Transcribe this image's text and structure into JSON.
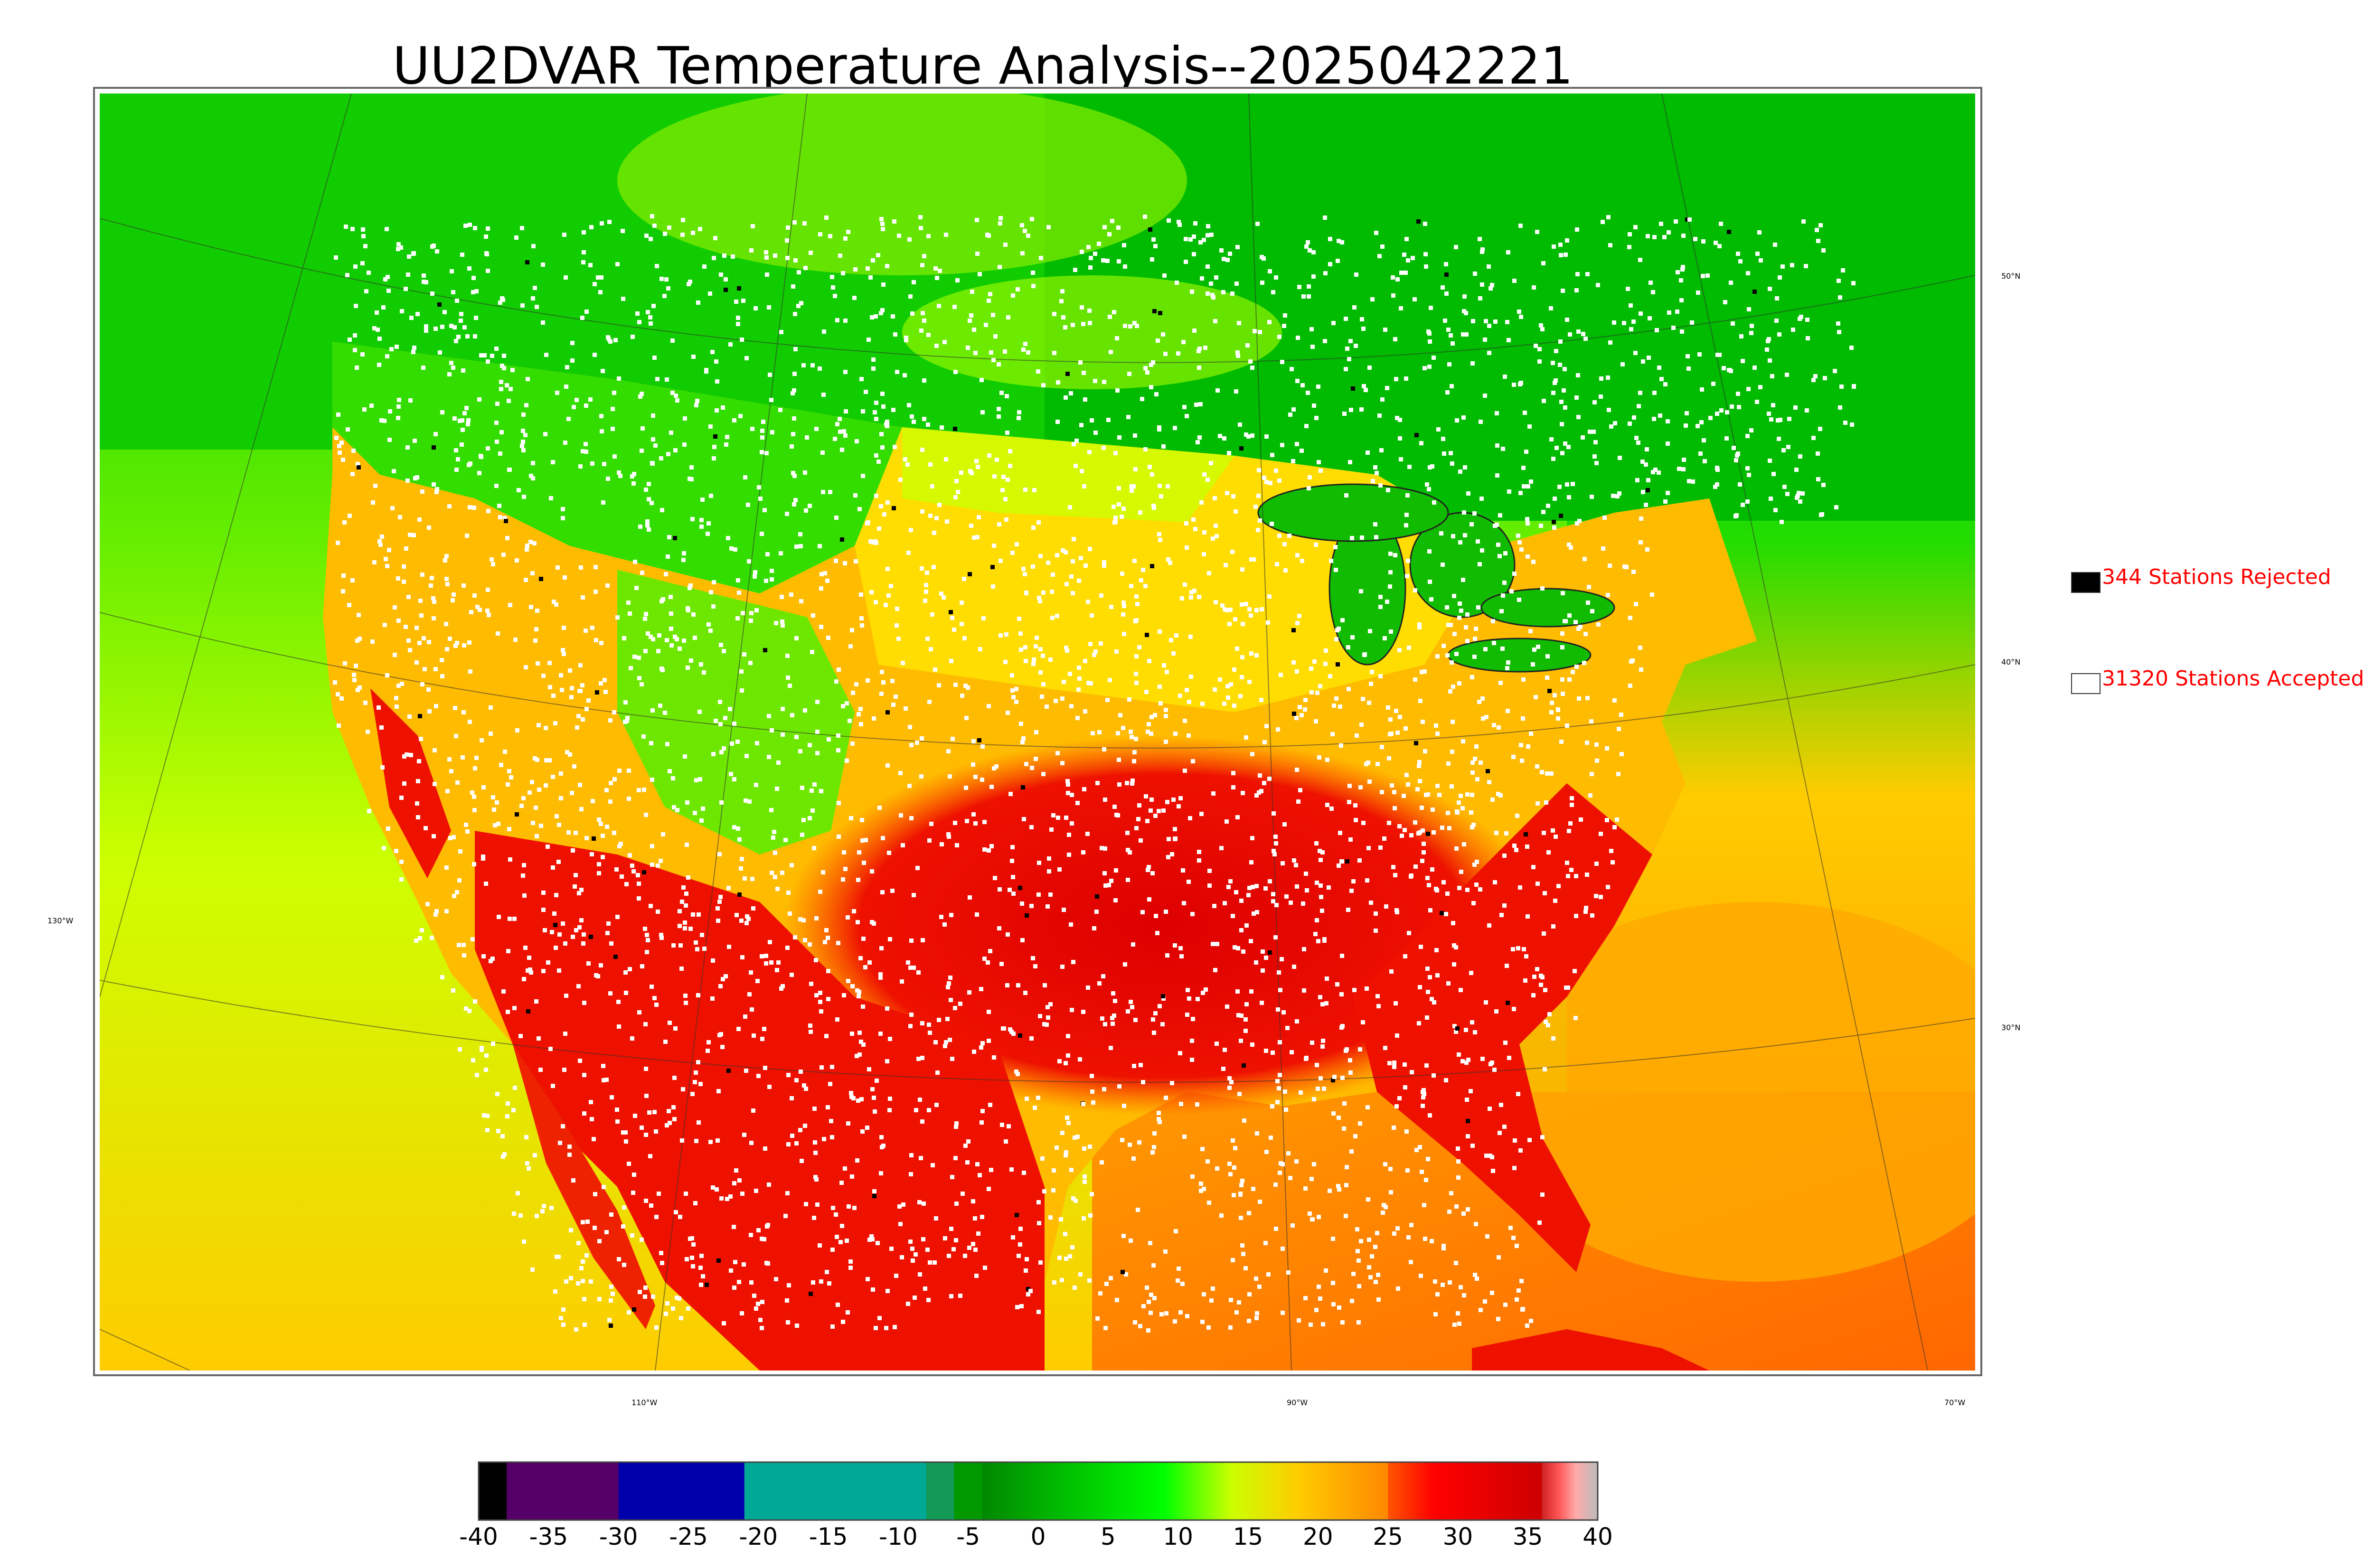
{
  "title": "UU2DVAR Temperature Analysis--2025042221",
  "legend": {
    "rejected": {
      "label": "344 Stations Rejected",
      "color": "#000000"
    },
    "accepted": {
      "label": "31320 Stations Accepted",
      "color": "#ffffff"
    }
  },
  "graticule_labels": {
    "lat_50": "50°N",
    "lat_40": "40°N",
    "lat_30": "30°N",
    "lon_130": "130°W",
    "lon_110": "110°W",
    "lon_90": "90°W",
    "lon_70": "70°W"
  },
  "colorbar": {
    "ticks": [
      "-40",
      "-35",
      "-30",
      "-25",
      "-20",
      "-15",
      "-10",
      "-5",
      "0",
      "5",
      "10",
      "15",
      "20",
      "25",
      "30",
      "35",
      "40"
    ],
    "range": [
      -40,
      40
    ],
    "segments": [
      {
        "from": -40,
        "to": -38,
        "color": "#000000"
      },
      {
        "from": -38,
        "to": -30,
        "color": "#550066"
      },
      {
        "from": -30,
        "to": -21,
        "color": "#0000aa"
      },
      {
        "from": -21,
        "to": -8,
        "color": "#00a896"
      },
      {
        "from": -8,
        "to": -6,
        "color": "#119955"
      },
      {
        "from": -6,
        "to": -4,
        "color": "#009900"
      },
      {
        "from": -4,
        "to": 9,
        "color": "gradient-green"
      },
      {
        "from": 9,
        "to": 25,
        "color": "gradient-yellow"
      },
      {
        "from": 25,
        "to": 36,
        "color": "gradient-red"
      },
      {
        "from": 36,
        "to": 40,
        "color": "gradient-pink-gray"
      }
    ]
  }
}
